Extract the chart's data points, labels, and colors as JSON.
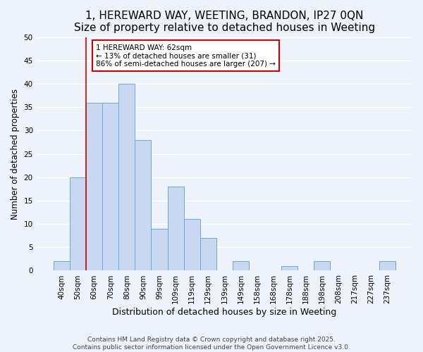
{
  "title": "1, HEREWARD WAY, WEETING, BRANDON, IP27 0QN",
  "subtitle": "Size of property relative to detached houses in Weeting",
  "xlabel": "Distribution of detached houses by size in Weeting",
  "ylabel": "Number of detached properties",
  "bar_labels": [
    "40sqm",
    "50sqm",
    "60sqm",
    "70sqm",
    "80sqm",
    "90sqm",
    "99sqm",
    "109sqm",
    "119sqm",
    "129sqm",
    "139sqm",
    "149sqm",
    "158sqm",
    "168sqm",
    "178sqm",
    "188sqm",
    "198sqm",
    "208sqm",
    "217sqm",
    "227sqm",
    "237sqm"
  ],
  "bar_values": [
    2,
    20,
    36,
    36,
    40,
    28,
    9,
    18,
    11,
    7,
    0,
    2,
    0,
    0,
    1,
    0,
    2,
    0,
    0,
    0,
    2
  ],
  "bar_color": "#c8d8f0",
  "bar_edge_color": "#6aaad4",
  "background_color": "#eef2fb",
  "grid_color": "#ffffff",
  "vline_color": "#cc0000",
  "annotation_line1": "1 HEREWARD WAY: 62sqm",
  "annotation_line2": "← 13% of detached houses are smaller (31)",
  "annotation_line3": "86% of semi-detached houses are larger (207) →",
  "annotation_box_color": "#ffffff",
  "annotation_box_edge": "#cc0000",
  "footnote1": "Contains HM Land Registry data © Crown copyright and database right 2025.",
  "footnote2": "Contains public sector information licensed under the Open Government Licence v3.0.",
  "ylim": [
    0,
    50
  ],
  "yticks": [
    0,
    5,
    10,
    15,
    20,
    25,
    30,
    35,
    40,
    45,
    50
  ],
  "title_fontsize": 11,
  "xlabel_fontsize": 9,
  "ylabel_fontsize": 8.5,
  "tick_fontsize": 7.5,
  "annotation_fontsize": 7.5,
  "footnote_fontsize": 6.5
}
